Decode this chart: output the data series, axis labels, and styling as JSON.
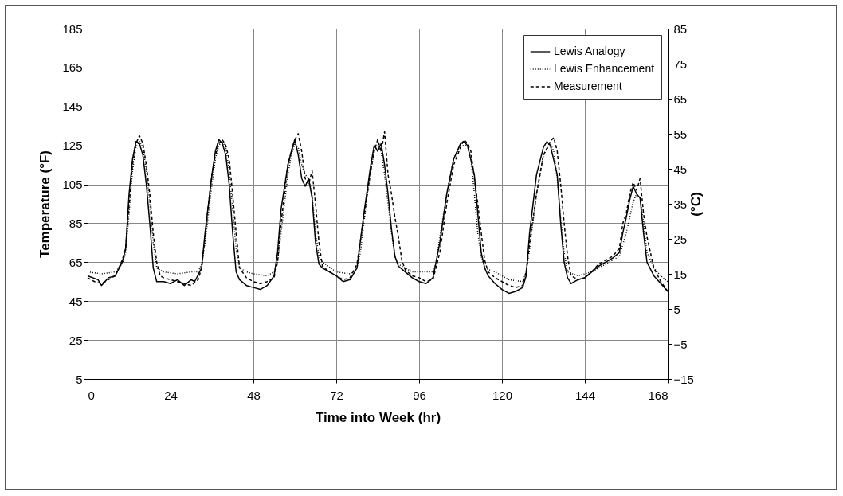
{
  "chart_data": {
    "type": "line",
    "xlabel": "Time into Week (hr)",
    "ylabel": "Temperature (°F)",
    "y2label": "(°C)",
    "xlim": [
      0,
      168
    ],
    "xticks": [
      0,
      24,
      48,
      72,
      96,
      120,
      144,
      168
    ],
    "ylim": [
      5,
      185
    ],
    "yticks": [
      5,
      25,
      45,
      65,
      85,
      105,
      125,
      145,
      165,
      185
    ],
    "y2lim": [
      -15,
      85
    ],
    "y2ticks": [
      -15,
      -5,
      5,
      15,
      25,
      35,
      45,
      55,
      65,
      75,
      85
    ],
    "grid": true,
    "legend": "top right",
    "marker": "none",
    "series": [
      {
        "name": "Lewis Analogy",
        "color": "#000000",
        "line_style": "solid",
        "x": [
          0,
          3,
          4,
          6,
          8,
          10,
          11,
          12,
          13,
          14,
          15,
          16,
          17,
          18,
          19,
          20,
          22,
          24,
          26,
          28,
          30,
          31,
          33,
          34,
          36,
          37,
          38,
          39,
          40,
          41,
          42,
          43,
          44,
          46,
          48,
          50,
          52,
          54,
          55,
          56,
          58,
          59,
          60,
          61,
          62,
          63,
          64,
          65,
          66,
          67,
          68,
          72,
          74,
          76,
          78,
          80,
          82,
          83,
          84,
          85,
          86,
          87,
          88,
          89,
          90,
          92,
          94,
          96,
          98,
          100,
          102,
          104,
          106,
          108,
          109,
          110,
          112,
          113,
          114,
          115,
          116,
          118,
          120,
          122,
          124,
          126,
          127,
          128,
          130,
          132,
          133,
          134,
          136,
          137,
          138,
          139,
          140,
          142,
          144,
          146,
          148,
          150,
          152,
          154,
          155,
          156,
          157,
          158,
          159,
          160,
          161,
          162,
          164,
          166,
          168
        ],
        "values": [
          58,
          56,
          53,
          57,
          58,
          65,
          72,
          100,
          118,
          127,
          126,
          120,
          105,
          85,
          62,
          55,
          55,
          54,
          56,
          53,
          56,
          55,
          62,
          80,
          110,
          122,
          128,
          126,
          120,
          105,
          80,
          60,
          56,
          53,
          52,
          51,
          53,
          58,
          70,
          92,
          115,
          122,
          128,
          120,
          108,
          104,
          108,
          98,
          75,
          64,
          62,
          58,
          55,
          56,
          62,
          90,
          115,
          125,
          122,
          126,
          115,
          100,
          82,
          68,
          63,
          60,
          57,
          55,
          54,
          57,
          75,
          100,
          118,
          126,
          127,
          125,
          110,
          90,
          70,
          62,
          58,
          54,
          51,
          49,
          50,
          52,
          58,
          80,
          110,
          124,
          127,
          125,
          110,
          85,
          65,
          57,
          54,
          56,
          57,
          60,
          63,
          65,
          67,
          70,
          80,
          88,
          97,
          104,
          100,
          98,
          80,
          65,
          58,
          54,
          50
        ]
      },
      {
        "name": "Lewis Enhancement",
        "color": "#000000",
        "line_style": "dotted",
        "x": [
          0,
          4,
          8,
          10,
          11,
          12,
          13,
          14,
          15,
          16,
          17,
          18,
          19,
          20,
          22,
          26,
          30,
          32,
          33,
          34,
          35,
          36,
          37,
          38,
          39,
          40,
          41,
          42,
          43,
          44,
          46,
          48,
          52,
          54,
          55,
          56,
          57,
          58,
          59,
          60,
          61,
          62,
          63,
          64,
          65,
          66,
          67,
          68,
          72,
          76,
          78,
          79,
          80,
          81,
          82,
          83,
          84,
          85,
          86,
          87,
          88,
          89,
          90,
          94,
          98,
          100,
          101,
          102,
          104,
          106,
          108,
          110,
          111,
          112,
          113,
          114,
          115,
          118,
          122,
          126,
          127,
          128,
          130,
          132,
          134,
          135,
          136,
          137,
          138,
          139,
          142,
          146,
          150,
          154,
          156,
          158,
          159,
          160,
          161,
          162,
          164,
          166,
          168
        ],
        "values": [
          60,
          59,
          60,
          64,
          70,
          90,
          112,
          124,
          127,
          124,
          112,
          95,
          75,
          62,
          60,
          59,
          60,
          60,
          64,
          75,
          90,
          105,
          118,
          125,
          127,
          124,
          112,
          92,
          72,
          62,
          60,
          59,
          58,
          60,
          65,
          80,
          95,
          110,
          120,
          126,
          124,
          115,
          110,
          108,
          100,
          80,
          68,
          65,
          60,
          59,
          62,
          70,
          85,
          100,
          112,
          122,
          125,
          122,
          110,
          95,
          80,
          68,
          64,
          60,
          60,
          60,
          65,
          78,
          100,
          118,
          125,
          125,
          118,
          100,
          80,
          68,
          62,
          60,
          56,
          55,
          60,
          72,
          100,
          120,
          126,
          122,
          108,
          88,
          70,
          60,
          58,
          60,
          64,
          68,
          80,
          96,
          100,
          98,
          85,
          70,
          62,
          58,
          55
        ]
      },
      {
        "name": "Measurement",
        "color": "#000000",
        "line_style": "dashed",
        "x": [
          0,
          2,
          4,
          6,
          8,
          10,
          11,
          12,
          12.5,
          13,
          14,
          15,
          16,
          17,
          18,
          19,
          20,
          21,
          22,
          24,
          26,
          28,
          30,
          32,
          33,
          34,
          35,
          36,
          37,
          38,
          39,
          40,
          41,
          42,
          43,
          44,
          46,
          48,
          50,
          52,
          54,
          55,
          56,
          57,
          58,
          59,
          60,
          61,
          62,
          63,
          64,
          65,
          66,
          67,
          68,
          70,
          72,
          74,
          76,
          78,
          80,
          82,
          83,
          84,
          85,
          86,
          87,
          88,
          89,
          90,
          91,
          92,
          94,
          96,
          98,
          100,
          102,
          104,
          106,
          108,
          109,
          110,
          111,
          112,
          113,
          114,
          115,
          116,
          118,
          120,
          122,
          124,
          126,
          127,
          128,
          130,
          132,
          134,
          135,
          136,
          137,
          138,
          139,
          140,
          142,
          144,
          146,
          148,
          150,
          152,
          154,
          155,
          156,
          157,
          158,
          159,
          160,
          161,
          162,
          163,
          164,
          166,
          168
        ],
        "values": [
          57,
          55,
          54,
          56,
          58,
          66,
          72,
          95,
          105,
          115,
          126,
          130,
          126,
          115,
          100,
          80,
          65,
          58,
          57,
          56,
          55,
          54,
          53,
          56,
          62,
          78,
          95,
          110,
          120,
          126,
          128,
          125,
          118,
          100,
          80,
          62,
          57,
          55,
          54,
          55,
          57,
          65,
          85,
          100,
          115,
          122,
          128,
          131,
          122,
          108,
          105,
          112,
          95,
          75,
          63,
          60,
          58,
          56,
          57,
          64,
          88,
          112,
          122,
          128,
          122,
          132,
          110,
          100,
          88,
          78,
          66,
          61,
          58,
          57,
          55,
          56,
          70,
          95,
          115,
          124,
          128,
          126,
          122,
          108,
          95,
          80,
          66,
          60,
          57,
          55,
          53,
          52,
          53,
          60,
          75,
          100,
          120,
          127,
          129,
          122,
          105,
          85,
          68,
          58,
          56,
          57,
          60,
          64,
          66,
          68,
          72,
          85,
          90,
          100,
          106,
          102,
          108,
          90,
          78,
          70,
          62,
          55,
          50
        ]
      }
    ]
  }
}
